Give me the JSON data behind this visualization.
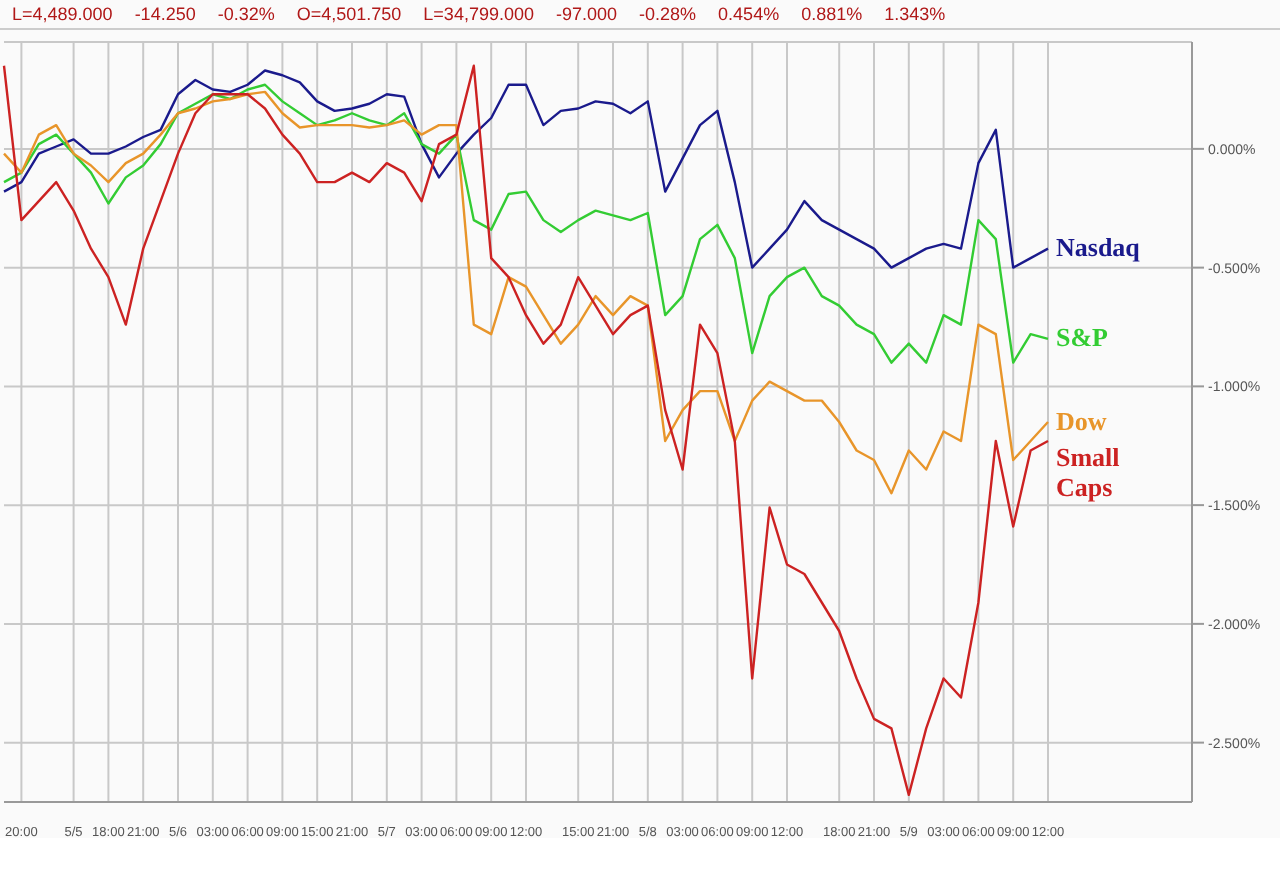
{
  "chart_data": {
    "type": "line",
    "annotations": [
      "L=4,489.000",
      "-14.250",
      "-0.32%",
      "O=4,501.750",
      "L=34,799.000",
      "-97.000",
      "-0.28%",
      "0.454%",
      "0.881%",
      "1.343%"
    ],
    "categories": [
      null,
      "20:00",
      null,
      null,
      "5/5",
      null,
      "18:00",
      null,
      "21:00",
      null,
      "5/6",
      null,
      "03:00",
      null,
      "06:00",
      null,
      "09:00",
      null,
      "15:00",
      null,
      "21:00",
      null,
      "5/7",
      null,
      "03:00",
      null,
      "06:00",
      null,
      "09:00",
      null,
      "12:00",
      null,
      null,
      "15:00",
      null,
      "21:00",
      null,
      "5/8",
      null,
      "03:00",
      null,
      "06:00",
      null,
      "09:00",
      null,
      "12:00",
      null,
      null,
      "18:00",
      null,
      "21:00",
      null,
      "5/9",
      null,
      "03:00",
      null,
      "06:00",
      null,
      "09:00",
      null,
      "12:00"
    ],
    "ylim": [
      -2.75,
      0.45
    ],
    "yticks": [
      {
        "value": 0,
        "label": "0.000%"
      },
      {
        "value": -0.5,
        "label": "-0.500%"
      },
      {
        "value": -1,
        "label": "-1.000%"
      },
      {
        "value": -1.5,
        "label": "-1.500%"
      },
      {
        "value": -2,
        "label": "-2.000%"
      },
      {
        "value": -2.5,
        "label": "-2.500%"
      }
    ],
    "grid": true,
    "legend": false,
    "marker": "none",
    "line_style": "solid",
    "series": [
      {
        "name": "Nasdaq",
        "color": "#1a1a8c",
        "values": [
          -0.18,
          -0.14,
          -0.02,
          0.01,
          0.04,
          -0.02,
          -0.02,
          0.01,
          0.05,
          0.08,
          0.23,
          0.29,
          0.25,
          0.24,
          0.27,
          0.33,
          0.31,
          0.28,
          0.2,
          0.16,
          0.17,
          0.19,
          0.23,
          0.22,
          0.02,
          -0.12,
          -0.02,
          0.06,
          0.13,
          0.27,
          0.27,
          0.1,
          0.16,
          0.17,
          0.2,
          0.19,
          0.15,
          0.2,
          -0.18,
          -0.04,
          0.1,
          0.16,
          -0.14,
          -0.5,
          -0.42,
          -0.34,
          -0.22,
          -0.3,
          -0.34,
          -0.38,
          -0.42,
          -0.5,
          -0.46,
          -0.42,
          -0.4,
          -0.42,
          -0.06,
          0.08,
          -0.5,
          -0.46,
          -0.42
        ]
      },
      {
        "name": "S&P",
        "color": "#33cc33",
        "values": [
          -0.14,
          -0.1,
          0.02,
          0.06,
          -0.02,
          -0.1,
          -0.23,
          -0.12,
          -0.07,
          0.02,
          0.15,
          0.19,
          0.23,
          0.21,
          0.25,
          0.27,
          0.2,
          0.15,
          0.1,
          0.12,
          0.15,
          0.12,
          0.1,
          0.15,
          0.02,
          -0.02,
          0.06,
          -0.3,
          -0.34,
          -0.19,
          -0.18,
          -0.3,
          -0.35,
          -0.3,
          -0.26,
          -0.28,
          -0.3,
          -0.27,
          -0.7,
          -0.62,
          -0.38,
          -0.32,
          -0.46,
          -0.86,
          -0.62,
          -0.54,
          -0.5,
          -0.62,
          -0.66,
          -0.74,
          -0.78,
          -0.9,
          -0.82,
          -0.9,
          -0.7,
          -0.74,
          -0.3,
          -0.38,
          -0.9,
          -0.78,
          -0.8
        ]
      },
      {
        "name": "Dow",
        "color": "#e8952a",
        "values": [
          -0.02,
          -0.1,
          0.06,
          0.1,
          -0.02,
          -0.07,
          -0.14,
          -0.06,
          -0.02,
          0.06,
          0.15,
          0.17,
          0.2,
          0.21,
          0.23,
          0.24,
          0.15,
          0.09,
          0.1,
          0.1,
          0.1,
          0.09,
          0.1,
          0.12,
          0.06,
          0.1,
          0.1,
          -0.74,
          -0.78,
          -0.54,
          -0.58,
          -0.7,
          -0.82,
          -0.74,
          -0.62,
          -0.7,
          -0.62,
          -0.66,
          -1.23,
          -1.1,
          -1.02,
          -1.02,
          -1.23,
          -1.06,
          -0.98,
          -1.02,
          -1.06,
          -1.06,
          -1.15,
          -1.27,
          -1.31,
          -1.45,
          -1.27,
          -1.35,
          -1.19,
          -1.23,
          -0.74,
          -0.78,
          -1.31,
          -1.23,
          -1.15
        ]
      },
      {
        "name": "Small Caps",
        "color": "#cc2222",
        "values": [
          0.35,
          -0.3,
          -0.22,
          -0.14,
          -0.26,
          -0.42,
          -0.54,
          -0.74,
          -0.42,
          -0.22,
          -0.02,
          0.15,
          0.23,
          0.23,
          0.23,
          0.17,
          0.06,
          -0.02,
          -0.14,
          -0.14,
          -0.1,
          -0.14,
          -0.06,
          -0.1,
          -0.22,
          0.02,
          0.06,
          0.35,
          -0.46,
          -0.54,
          -0.7,
          -0.82,
          -0.74,
          -0.54,
          -0.66,
          -0.78,
          -0.7,
          -0.66,
          -1.1,
          -1.35,
          -0.74,
          -0.86,
          -1.23,
          -2.23,
          -1.51,
          -1.75,
          -1.79,
          -1.91,
          -2.03,
          -2.23,
          -2.4,
          -2.44,
          -2.72,
          -2.44,
          -2.23,
          -2.31,
          -1.91,
          -1.23,
          -1.59,
          -1.27,
          -1.23
        ]
      }
    ]
  }
}
